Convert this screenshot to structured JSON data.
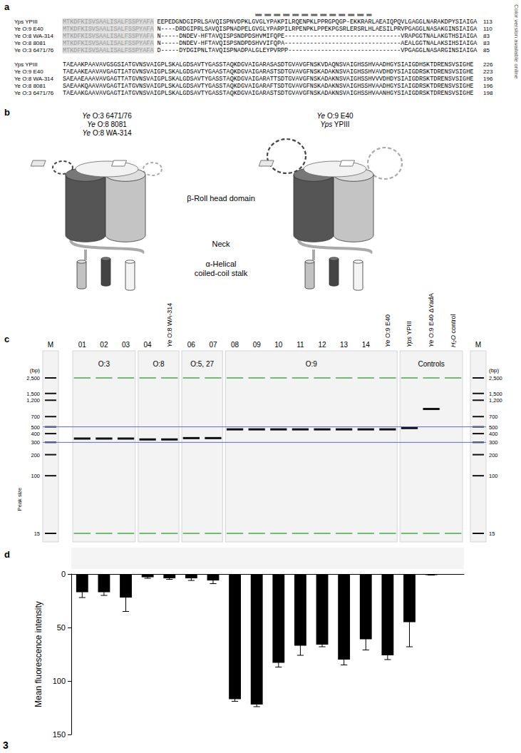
{
  "figure_number": "3",
  "side_note": "Color version available online",
  "panel_a": {
    "label": "a",
    "blocks": [
      {
        "rows": [
          {
            "name": "Yps YPIII",
            "signal": "MTKDFKISVSAALISALFSSPYAFA",
            "sequence": "EEPEDGNDGIPRLSAVQISPNVDPKLGVGLYPAKPILRQENPKLPPRGPQGP-EKKRARLAEAIQPQVLGAGGLNARAKDPYSIAIGA",
            "end": 113
          },
          {
            "name": "Ye O:9 E40",
            "signal": "MTKDFKISVSAALISALFSSPYAFA",
            "sequence": "N----DRDGIPRLSAVQISPNADPELGVGLYPARPILRPENPKLPPEKPGSRLERSRLHLAESILPRVPGAGGLNASAKGINSIAIGA",
            "end": 110
          },
          {
            "name": "Ye O:8 WA-314",
            "signal": "MTKDFKISVSAALISALFSSPYAFA",
            "sequence": "N-----DNDEV-HFTAVQISPSNDPDSHVMIFQPE--------------------------------VRAPGGTNALAKGTHSIAIGA",
            "end": 83
          },
          {
            "name": "Ye O:8 8081",
            "signal": "MTKDFKISVSAALISALFSSPYAFA",
            "sequence": "N-----DNDEV-HFTAVQISPSNDPDSHVVIFQPA--------------------------------AEALGGTNALAKSIHSIAIGA",
            "end": 83
          },
          {
            "name": "Ye O:3 6471/76",
            "signal": "MTKDFKISVSAALISALFSSPYAFA",
            "sequence": "D-----DYDGIPNLTAVQISPNADPALGLEYPVRPP-------------------------------VPGAGGLNASARGINSIAIGA",
            "end": 85
          }
        ]
      },
      {
        "rows": [
          {
            "name": "Yps YPIII",
            "sequence": "TAEAAKPAAVAVGSGSIATGVNSVAIGPLSKALGDSAVTYGASSTAQKDGVAIGARASASDTGVAVGFNSKVDAQNSVAIGHSSHVAADHGYSIAIGDHSKTDRENSVSIGHE",
            "end": 226
          },
          {
            "name": "Ye O:9 E40",
            "sequence": "TAEAAKEAAVAVGAGTIATGVNSVAIGPLSKALGDSAVTYGAASTAQKDGVAIGARASTSDTGVAVGFNSKADAKNSVAIGHSSHVAVDHDYSIAIGDRSKTDRENSVSIGHE",
            "end": 223
          },
          {
            "name": "Ye O:8 WA-314",
            "sequence": "SAEAAEAAAVAVGAGTTATGVNSVAIGPLSKALGDSAVTYGASSTAQKDGVAIGARATTSDTGVAVGFNSKADAKNSVAIGHSSHVVVDHDYSIAIGDRSKTDRENSVSIGHE",
            "end": 196
          },
          {
            "name": "Ye O:8 8081",
            "sequence": "SAEAAKQAAVAVGAGTIATGVNSVAIGPLSKALGDSAVTYGASSTAQKDGVAIGARAFTSDTGVAVGFNSKADAKNSVAIGHSSHVAADHGYSIAIGDRSKTDRENSVSIGHE",
            "end": 196
          },
          {
            "name": "Ye O:3 6471/76",
            "sequence": "TAEAAKGAAVAVGAGTIATGVNSVAIGPLSKALGDSAVTYGASSTAQKDGVAIGARASTSDTGVAVGFNSKADAKNSVAIGHSSHVAANHGYSIAIGDRSKTDRENSVSIGHE",
            "end": 198
          }
        ]
      }
    ]
  },
  "panel_b": {
    "label": "b",
    "left_strains": [
      "Ye O:3 6471/76",
      "Ye O:8 8081",
      "Ye O:8 WA-314"
    ],
    "right_strains": [
      "Ye O:9 E40",
      "Yps YPIII"
    ],
    "head": "β-Roll head domain",
    "neck": "Neck",
    "stalk": [
      "α-Helical",
      "coiled-coil stalk"
    ]
  },
  "panel_c": {
    "label": "c",
    "marker": "M",
    "unit": "(bp)",
    "peak_axis": "Peak size",
    "ladder": [
      {
        "value": 2500,
        "label": "2,500"
      },
      {
        "value": 1500,
        "label": "1,500"
      },
      {
        "value": 1200,
        "label": "1,200"
      },
      {
        "value": 700,
        "label": "700"
      },
      {
        "value": 500,
        "label": "500"
      },
      {
        "value": 400,
        "label": "400"
      },
      {
        "value": 300,
        "label": "300"
      },
      {
        "value": 200,
        "label": "200"
      },
      {
        "value": 100,
        "label": "100"
      },
      {
        "value": 15,
        "label": "15"
      }
    ],
    "reference_lines": [
      500,
      300
    ],
    "groups": [
      {
        "name": "O:3",
        "lanes": [
          {
            "label": "01",
            "band": 340
          },
          {
            "label": "02",
            "band": 340
          },
          {
            "label": "03",
            "band": 340
          }
        ]
      },
      {
        "name": "O:8",
        "lanes": [
          {
            "label": "04",
            "band": 330
          },
          {
            "label": "Ye O:8 WA-314",
            "band": 330
          }
        ]
      },
      {
        "name": "O:5, 27",
        "lanes": [
          {
            "label": "06",
            "band": 345
          },
          {
            "label": "07",
            "band": 345
          }
        ]
      },
      {
        "name": "O:9",
        "lanes": [
          {
            "label": "08",
            "band": 460
          },
          {
            "label": "09",
            "band": 460
          },
          {
            "label": "10",
            "band": 460
          },
          {
            "label": "11",
            "band": 460
          },
          {
            "label": "12",
            "band": 460
          },
          {
            "label": "13",
            "band": 460
          },
          {
            "label": "14",
            "band": 460
          },
          {
            "label": "Ye O:9 E40",
            "band": 460
          }
        ]
      },
      {
        "name": "Controls",
        "lanes": [
          {
            "label": "Yps YPIII",
            "band": 480
          },
          {
            "label": "Ye O:9 E40 ΔYadA",
            "band": 900
          },
          {
            "label": "H₂O control",
            "band": null
          }
        ]
      }
    ]
  },
  "panel_d": {
    "label": "d"
  },
  "chart_data": {
    "type": "bar",
    "categories": [
      "01",
      "02",
      "03",
      "04",
      "Ye O:8 WA-314",
      "06",
      "07",
      "08",
      "09",
      "10",
      "11",
      "12",
      "13",
      "14",
      "Ye O:9 E40",
      "Yps YPIII",
      "Ye O:9 E40 ΔYadA",
      "H₂O control"
    ],
    "values": [
      17,
      17,
      22,
      3,
      4,
      4,
      6,
      117,
      122,
      83,
      67,
      66,
      80,
      61,
      76,
      45,
      1,
      0
    ],
    "errors": [
      5,
      3,
      13,
      1,
      1,
      2,
      3,
      2,
      2,
      4,
      9,
      2,
      5,
      10,
      4,
      23,
      0,
      0
    ],
    "color": "#000000",
    "y_label": "Mean fluorescence intensity",
    "ylim": [
      0,
      150
    ],
    "yticks": [
      0,
      50,
      100,
      150
    ],
    "grid": false,
    "tick_labels": "y"
  }
}
